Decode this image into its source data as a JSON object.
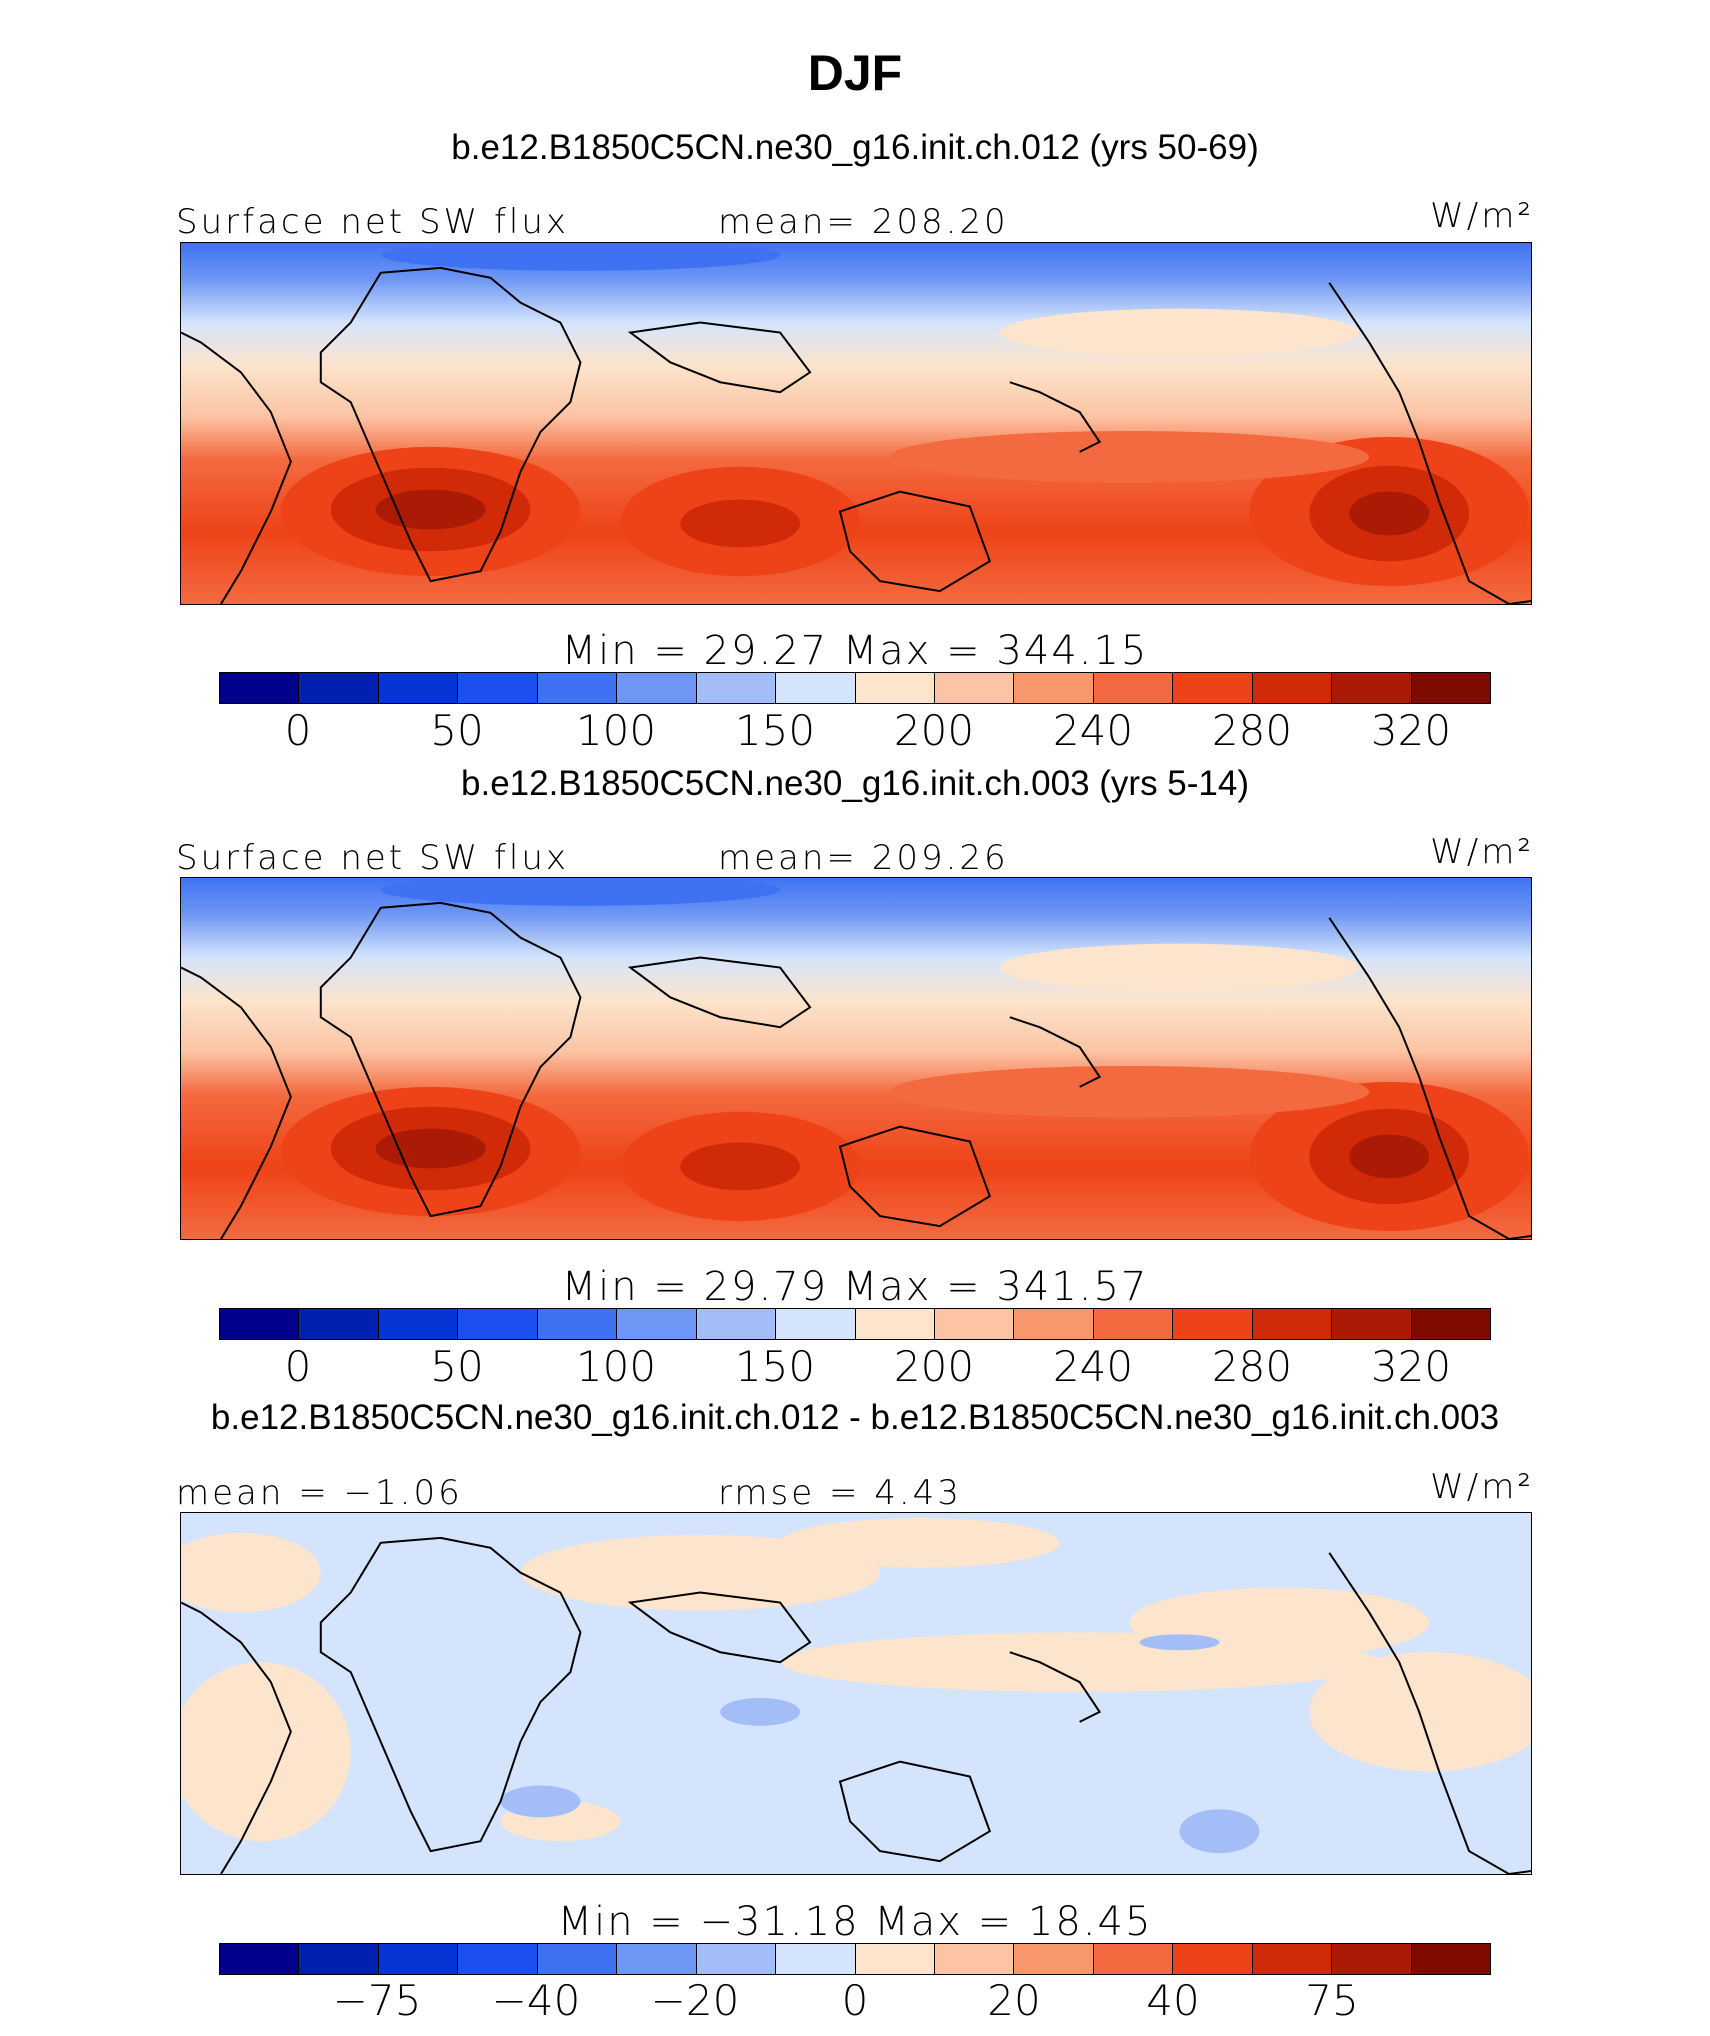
{
  "title": "DJF",
  "panels": [
    {
      "case_label": "b.e12.B1850C5CN.ne30_g16.init.ch.012 (yrs 50-69)",
      "left_label": "Surface net SW flux",
      "center_label": "mean= 208.20",
      "units": "W/m²",
      "minmax": "Min  =   29.27  Max  =  344.15",
      "ticks": [
        "0",
        "50",
        "100",
        "150",
        "200",
        "240",
        "280",
        "320"
      ]
    },
    {
      "case_label": "b.e12.B1850C5CN.ne30_g16.init.ch.003 (yrs 5-14)",
      "left_label": "Surface net SW flux",
      "center_label": "mean= 209.26",
      "units": "W/m²",
      "minmax": "Min  =   29.79  Max  =  341.57",
      "ticks": [
        "0",
        "50",
        "100",
        "150",
        "200",
        "240",
        "280",
        "320"
      ]
    },
    {
      "case_label": "b.e12.B1850C5CN.ne30_g16.init.ch.012 - b.e12.B1850C5CN.ne30_g16.init.ch.003",
      "left_label": "mean =  −1.06",
      "center_label": "rmse =    4.43",
      "units": "W/m²",
      "minmax": "Min  =  −31.18  Max  =    18.45",
      "ticks": [
        "−75",
        "−40",
        "−20",
        "0",
        "20",
        "40",
        "75"
      ]
    }
  ],
  "colorbar_colors": [
    "#00008c",
    "#0020b0",
    "#0635d6",
    "#1c4ff0",
    "#3e72f2",
    "#6e96f4",
    "#a2bdf7",
    "#d4e4fc",
    "#fde4cc",
    "#fcc4a4",
    "#f8966c",
    "#f46a40",
    "#ee4318",
    "#d02a08",
    "#aa1a04",
    "#7e0a00"
  ]
}
